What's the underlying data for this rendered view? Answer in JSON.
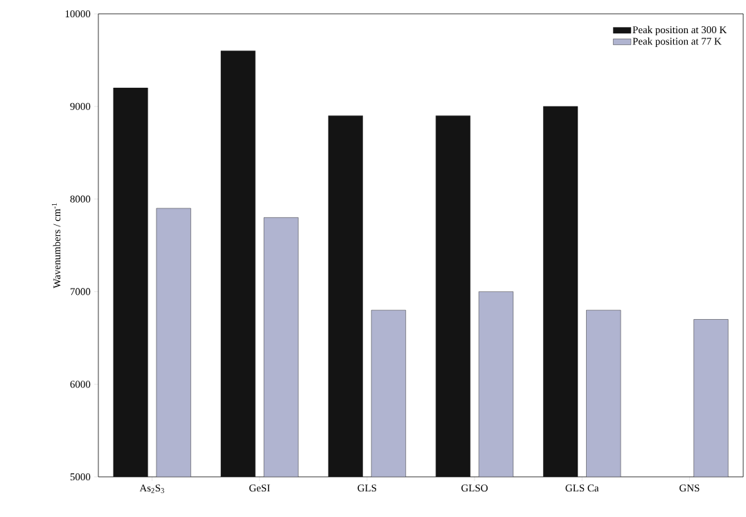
{
  "chart_data": {
    "type": "bar",
    "ylabel": "Wavenumbers / cm$^{-1}$",
    "categories": [
      "As$_{2}$S$_{3}$",
      "GeSI",
      "GLS",
      "GLSO",
      "GLS Ca",
      "GNS"
    ],
    "series": [
      {
        "name": "Peak position at 300 K",
        "color": "#141414",
        "values": [
          9200,
          9600,
          8900,
          8900,
          9000,
          null
        ]
      },
      {
        "name": "Peak position at 77 K",
        "color": "#b0b4d0",
        "values": [
          7900,
          7800,
          6800,
          7000,
          6800,
          6700
        ]
      }
    ],
    "ylim": [
      5000,
      10000
    ],
    "yticks": [
      5000,
      6000,
      7000,
      8000,
      9000,
      10000
    ],
    "grid": false,
    "legend": "top right"
  }
}
